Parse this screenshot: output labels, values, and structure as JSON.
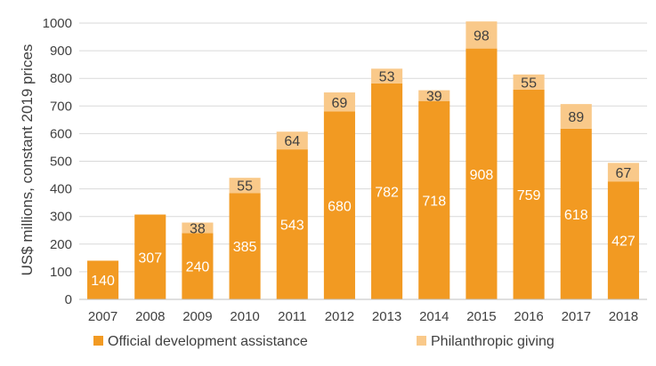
{
  "chart_data": {
    "type": "bar",
    "stacked": true,
    "categories": [
      "2007",
      "2008",
      "2009",
      "2010",
      "2011",
      "2012",
      "2013",
      "2014",
      "2015",
      "2016",
      "2017",
      "2018"
    ],
    "series": [
      {
        "name": "Official development assistance",
        "values": [
          140,
          307,
          240,
          385,
          543,
          680,
          782,
          718,
          908,
          759,
          618,
          427
        ],
        "color": "#f29a22",
        "label_color": "#ffffff"
      },
      {
        "name": "Philanthropic giving",
        "values": [
          0,
          0,
          38,
          55,
          64,
          69,
          53,
          39,
          98,
          55,
          89,
          67
        ],
        "color": "#f9c98a",
        "label_color": "#404040"
      }
    ],
    "ylabel": "US$ millions, constant 2019 prices",
    "xlabel": "",
    "ylim": [
      0,
      1000
    ],
    "yticks": [
      "0",
      "100",
      "200",
      "300",
      "400",
      "500",
      "600",
      "700",
      "800",
      "900",
      "1000"
    ],
    "grid": true,
    "legend": "bottom"
  }
}
